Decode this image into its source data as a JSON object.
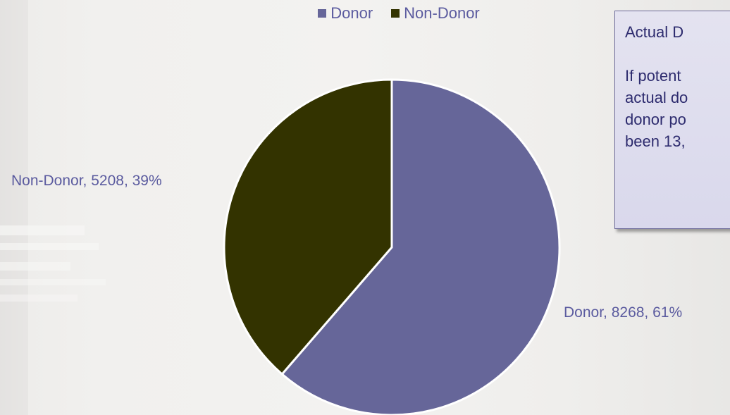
{
  "chart_data": {
    "type": "pie",
    "legend_position": "top",
    "categories": [
      "Donor",
      "Non-Donor"
    ],
    "values": [
      8268,
      5208
    ],
    "percents": [
      61,
      39
    ],
    "colors": [
      "#666699",
      "#333300"
    ],
    "labels": [
      "Donor, 8268, 61%",
      "Non-Donor, 5208, 39%"
    ]
  },
  "legend": [
    {
      "label": "Donor",
      "color": "#666699"
    },
    {
      "label": "Non-Donor",
      "color": "#333300"
    }
  ],
  "callout": {
    "line1": "Actual D",
    "line2": "If potent",
    "line3": "actual do",
    "line4": "donor po",
    "line5": "been 13,"
  }
}
